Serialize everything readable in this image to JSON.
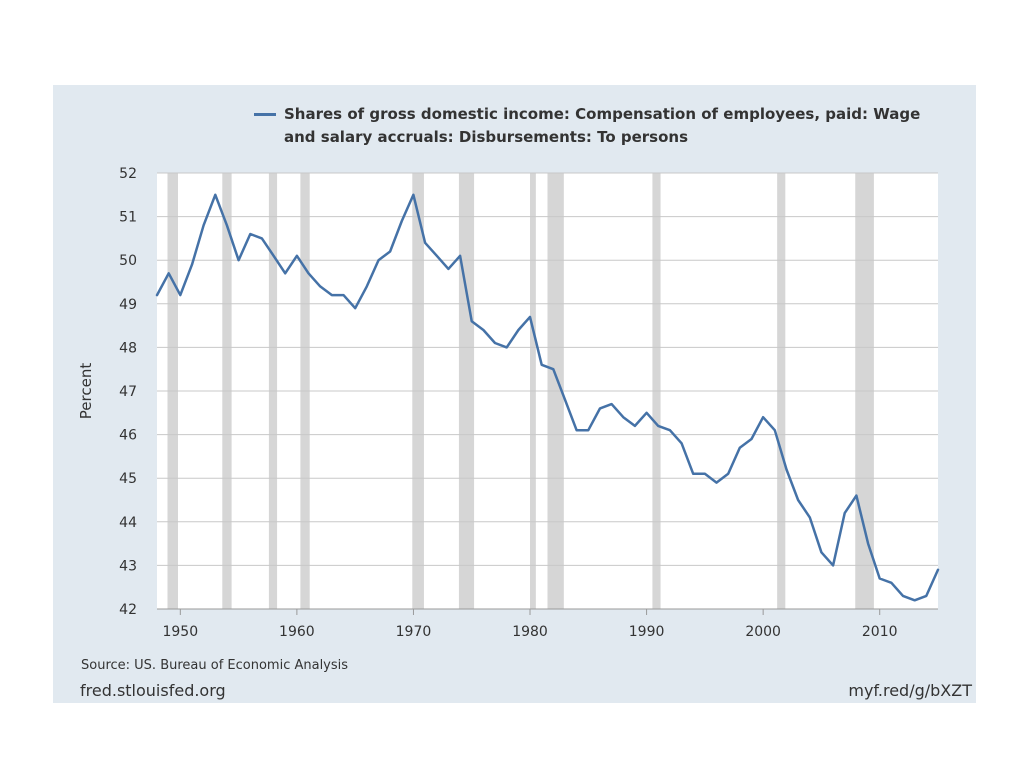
{
  "chart_data": {
    "type": "line",
    "legend": {
      "label": "Shares of gross domestic income: Compensation of employees, paid: Wage and salary accruals: Disbursements: To persons",
      "placement": "top"
    },
    "xlabel": "",
    "ylabel": "Percent",
    "xlim": [
      1948,
      2015
    ],
    "ylim": [
      42,
      52
    ],
    "x_ticks": [
      1950,
      1960,
      1970,
      1980,
      1990,
      2000,
      2010
    ],
    "y_ticks": [
      42,
      43,
      44,
      45,
      46,
      47,
      48,
      49,
      50,
      51,
      52
    ],
    "grid": true,
    "series_color": "#4572a7",
    "recession_color": "#d6d6d6",
    "series": [
      {
        "name": "Shares of gross domestic income: Compensation of employees, paid: Wage and salary accruals: Disbursements: To persons",
        "x": [
          1948,
          1949,
          1950,
          1951,
          1952,
          1953,
          1954,
          1955,
          1956,
          1957,
          1958,
          1959,
          1960,
          1961,
          1962,
          1963,
          1964,
          1965,
          1966,
          1967,
          1968,
          1969,
          1970,
          1971,
          1972,
          1973,
          1974,
          1975,
          1976,
          1977,
          1978,
          1979,
          1980,
          1981,
          1982,
          1983,
          1984,
          1985,
          1986,
          1987,
          1988,
          1989,
          1990,
          1991,
          1992,
          1993,
          1994,
          1995,
          1996,
          1997,
          1998,
          1999,
          2000,
          2001,
          2002,
          2003,
          2004,
          2005,
          2006,
          2007,
          2008,
          2009,
          2010,
          2011,
          2012,
          2013,
          2014,
          2015
        ],
        "y": [
          49.2,
          49.7,
          49.2,
          49.9,
          50.8,
          51.5,
          50.8,
          50.0,
          50.6,
          50.5,
          50.1,
          49.7,
          50.1,
          49.7,
          49.4,
          49.2,
          49.2,
          48.9,
          49.4,
          50.0,
          50.2,
          50.9,
          51.5,
          50.4,
          50.1,
          49.8,
          50.1,
          48.6,
          48.4,
          48.1,
          48.0,
          48.4,
          48.7,
          47.6,
          47.5,
          46.8,
          46.1,
          46.1,
          46.6,
          46.7,
          46.4,
          46.2,
          46.5,
          46.2,
          46.1,
          45.8,
          45.1,
          45.1,
          44.9,
          45.1,
          45.7,
          45.9,
          46.4,
          46.1,
          45.2,
          44.5,
          44.1,
          43.3,
          43.0,
          44.2,
          44.6,
          43.5,
          42.7,
          42.6,
          42.3,
          42.2,
          42.3,
          42.9
        ]
      }
    ],
    "recessions": [
      [
        1948.9,
        1949.8
      ],
      [
        1953.6,
        1954.4
      ],
      [
        1957.6,
        1958.3
      ],
      [
        1960.3,
        1961.1
      ],
      [
        1969.9,
        1970.9
      ],
      [
        1973.9,
        1975.2
      ],
      [
        1980.0,
        1980.5
      ],
      [
        1981.5,
        1982.9
      ],
      [
        1990.5,
        1991.2
      ],
      [
        2001.2,
        2001.9
      ],
      [
        2007.9,
        2009.5
      ]
    ]
  },
  "footer": {
    "source": "Source: US. Bureau of Economic Analysis",
    "fred_url": "fred.stlouisfed.org",
    "short_url": "myf.red/g/bXZT"
  }
}
